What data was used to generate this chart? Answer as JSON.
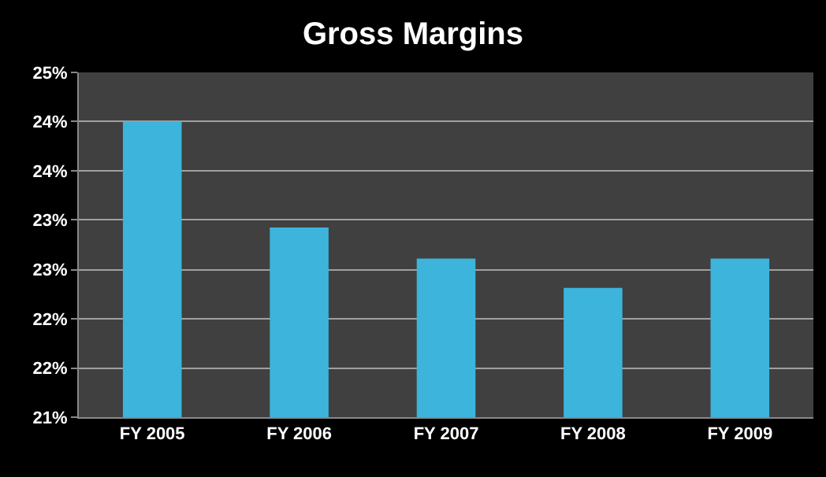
{
  "chart_data": {
    "type": "bar",
    "title": "Gross Margins",
    "categories": [
      "FY 2005",
      "FY 2006",
      "FY 2007",
      "FY 2008",
      "FY 2009"
    ],
    "values": [
      24.43,
      23.2,
      22.84,
      22.5,
      22.84
    ],
    "color": "#3cb4dc",
    "ylim": [
      21,
      25
    ],
    "yticks": [
      {
        "value": 21,
        "label": "21%"
      },
      {
        "value": 21.57,
        "label": "22%"
      },
      {
        "value": 22.14,
        "label": "22%"
      },
      {
        "value": 22.71,
        "label": "23%"
      },
      {
        "value": 23.29,
        "label": "23%"
      },
      {
        "value": 23.86,
        "label": "24%"
      },
      {
        "value": 24.43,
        "label": "24%"
      },
      {
        "value": 25,
        "label": "25%"
      }
    ],
    "grid": "y"
  }
}
